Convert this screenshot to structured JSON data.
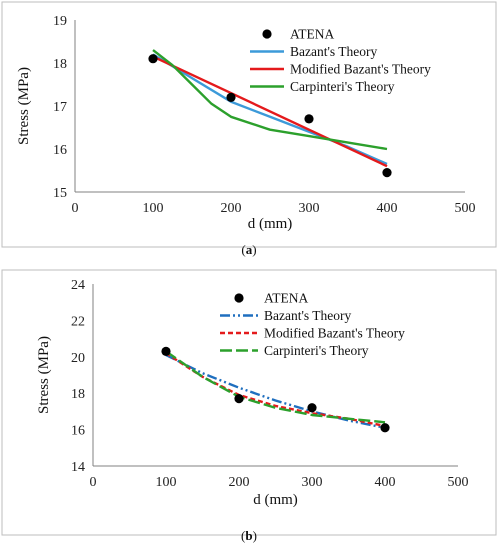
{
  "chart_data": [
    {
      "type": "line",
      "caption": "(a)",
      "xlabel": "d (mm)",
      "ylabel": "Stress (MPa)",
      "xlim": [
        0,
        500
      ],
      "ylim": [
        15,
        19
      ],
      "xticks": [
        0,
        100,
        200,
        300,
        400,
        500
      ],
      "yticks": [
        15,
        16,
        17,
        18,
        19
      ],
      "grid": false,
      "legend_position": "top-right",
      "scatter": {
        "name": "ATENA",
        "color": "#000000",
        "x": [
          100,
          200,
          300,
          400
        ],
        "y": [
          18.1,
          17.2,
          16.7,
          15.45
        ]
      },
      "series": [
        {
          "name": "Bazant's Theory",
          "color": "#3c9ad9",
          "dash": "solid",
          "x": [
            100,
            150,
            200,
            250,
            300,
            350,
            400
          ],
          "y": [
            18.2,
            17.65,
            17.1,
            16.75,
            16.4,
            16.05,
            15.65
          ]
        },
        {
          "name": "Modified Bazant's Theory",
          "color": "#e41a1c",
          "dash": "solid",
          "x": [
            100,
            200,
            300,
            400
          ],
          "y": [
            18.15,
            17.3,
            16.45,
            15.6
          ]
        },
        {
          "name": "Carpinteri's Theory",
          "color": "#2ca02c",
          "dash": "solid",
          "x": [
            100,
            125,
            150,
            175,
            200,
            250,
            300,
            350,
            400
          ],
          "y": [
            18.3,
            17.95,
            17.5,
            17.05,
            16.75,
            16.45,
            16.3,
            16.15,
            16.0
          ]
        }
      ]
    },
    {
      "type": "line",
      "caption": "(b)",
      "xlabel": "d (mm)",
      "ylabel": "Stress (MPa)",
      "xlim": [
        0,
        500
      ],
      "ylim": [
        14,
        24
      ],
      "xticks": [
        0,
        100,
        200,
        300,
        400,
        500
      ],
      "yticks": [
        14,
        16,
        18,
        20,
        22,
        24
      ],
      "grid": false,
      "legend_position": "top-right",
      "scatter": {
        "name": "ATENA",
        "color": "#000000",
        "x": [
          100,
          200,
          300,
          400
        ],
        "y": [
          20.3,
          17.7,
          17.2,
          16.1
        ]
      },
      "series": [
        {
          "name": "Bazant's Theory",
          "color": "#1f6fbf",
          "dash": "dashdot",
          "x": [
            100,
            150,
            200,
            250,
            300,
            350,
            400
          ],
          "y": [
            20.1,
            19.1,
            18.3,
            17.6,
            17.0,
            16.5,
            16.1
          ]
        },
        {
          "name": "Modified Bazant's Theory",
          "color": "#e41a1c",
          "dash": "dashed",
          "x": [
            100,
            150,
            200,
            250,
            300,
            350,
            400
          ],
          "y": [
            20.2,
            18.9,
            17.9,
            17.3,
            16.9,
            16.6,
            16.2
          ]
        },
        {
          "name": "Carpinteri's Theory",
          "color": "#2ca02c",
          "dash": "longdash",
          "x": [
            100,
            150,
            200,
            250,
            300,
            350,
            400
          ],
          "y": [
            20.3,
            18.9,
            17.8,
            17.2,
            16.8,
            16.6,
            16.4
          ]
        }
      ]
    }
  ]
}
